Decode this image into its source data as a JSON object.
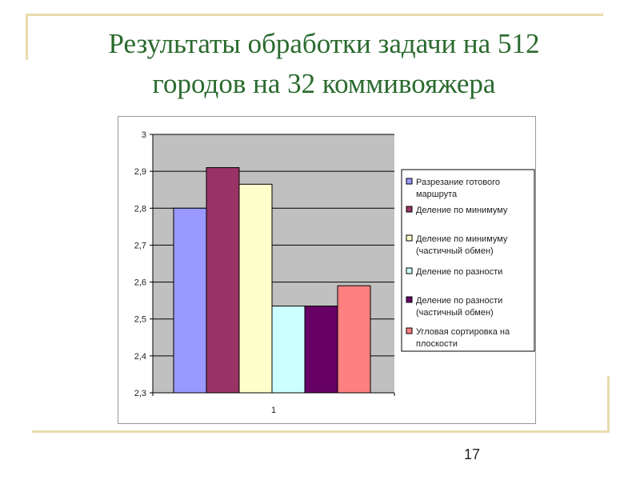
{
  "slide": {
    "title_line1": "Результаты обработки задачи на 512",
    "title_line2": "городов на 32 коммивояжера",
    "page_number": "17"
  },
  "chart_data": {
    "type": "bar",
    "categories": [
      "1"
    ],
    "ylim": [
      2.3,
      3
    ],
    "yticks": [
      "2,3",
      "2,4",
      "2,5",
      "2,6",
      "2,7",
      "2,8",
      "2,9",
      "3"
    ],
    "grid": true,
    "legend_position": "right",
    "plot_background": "#c0c0c0",
    "series": [
      {
        "name": "Разрезание готового маршрута",
        "name_lines": [
          "Разрезание готового",
          "маршрута"
        ],
        "values": [
          2.8
        ],
        "color": "#9999ff"
      },
      {
        "name": "Деление по минимуму",
        "name_lines": [
          "Деление по минимуму"
        ],
        "values": [
          2.91
        ],
        "color": "#993366"
      },
      {
        "name": "Деление по минимуму (частичный обмен)",
        "name_lines": [
          "Деление по минимуму",
          "(частичный обмен)"
        ],
        "values": [
          2.865
        ],
        "color": "#ffffcc"
      },
      {
        "name": "Деление по разности",
        "name_lines": [
          "Деление по разности"
        ],
        "values": [
          2.535
        ],
        "color": "#ccffff"
      },
      {
        "name": "Деление по разности (частичный обмен)",
        "name_lines": [
          "Деление по разности",
          "(частичный обмен)"
        ],
        "values": [
          2.535
        ],
        "color": "#660066"
      },
      {
        "name": "Угловая сортировка на плоскости",
        "name_lines": [
          "Угловая сортировка на",
          "плоскости"
        ],
        "values": [
          2.59
        ],
        "color": "#ff8080"
      }
    ]
  }
}
